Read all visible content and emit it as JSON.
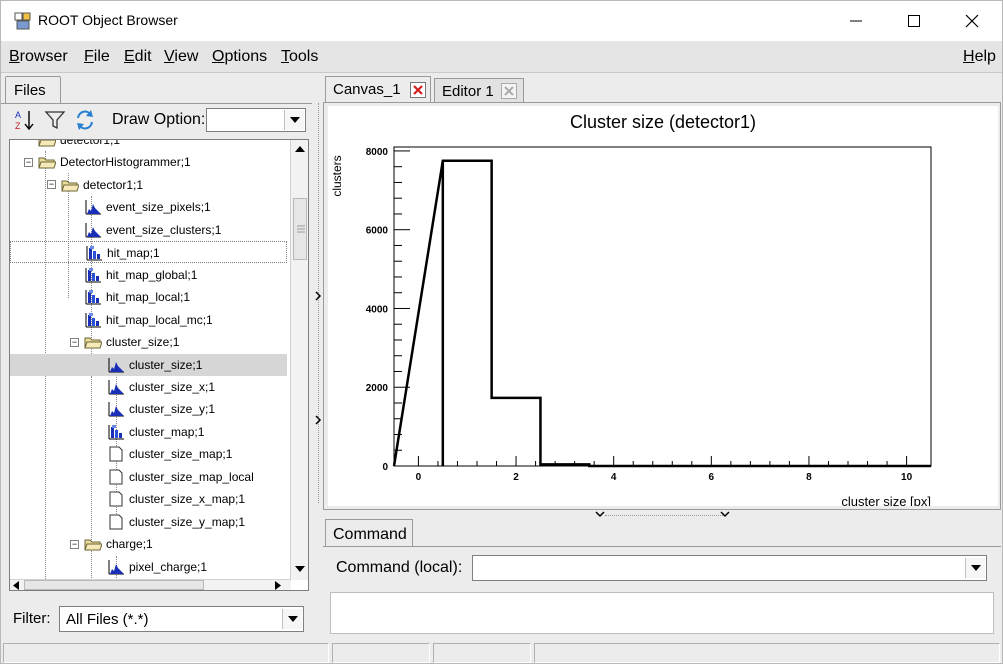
{
  "window": {
    "title": "ROOT Object Browser"
  },
  "menubar": {
    "items": [
      {
        "label": "Browser",
        "u": "B",
        "rest": "rowser"
      },
      {
        "label": "File",
        "u": "F",
        "rest": "ile"
      },
      {
        "label": "Edit",
        "u": "E",
        "rest": "dit"
      },
      {
        "label": "View",
        "u": "V",
        "rest": "iew"
      },
      {
        "label": "Options",
        "u": "O",
        "rest": "ptions"
      },
      {
        "label": "Tools",
        "u": "T",
        "rest": "ools"
      }
    ],
    "help": {
      "label": "Help",
      "u": "H",
      "rest": "elp"
    }
  },
  "left_panel": {
    "tab_label": "Files",
    "draw_option_label": "Draw Option:",
    "draw_option_value": "",
    "filter_label": "Filter:",
    "filter_value": "All Files (*.*)"
  },
  "tree": {
    "items": [
      {
        "label": "detector1;1",
        "icon": "folder",
        "toggle": "",
        "partial": true
      },
      {
        "label": "DetectorHistogrammer;1",
        "icon": "folder-open",
        "toggle": "−"
      },
      {
        "label": "detector1;1",
        "icon": "folder-open",
        "toggle": "−"
      },
      {
        "label": "event_size_pixels;1",
        "icon": "histogram-1d",
        "toggle": ""
      },
      {
        "label": "event_size_clusters;1",
        "icon": "histogram-1d",
        "toggle": ""
      },
      {
        "label": "hit_map;1",
        "icon": "histogram-2d",
        "toggle": ""
      },
      {
        "label": "hit_map_global;1",
        "icon": "histogram-2d",
        "toggle": ""
      },
      {
        "label": "hit_map_local;1",
        "icon": "histogram-2d",
        "toggle": ""
      },
      {
        "label": "hit_map_local_mc;1",
        "icon": "histogram-2d",
        "toggle": ""
      },
      {
        "label": "cluster_size;1",
        "icon": "folder-open",
        "toggle": "−"
      },
      {
        "label": "cluster_size;1",
        "icon": "histogram-1d",
        "toggle": ""
      },
      {
        "label": "cluster_size_x;1",
        "icon": "histogram-1d",
        "toggle": ""
      },
      {
        "label": "cluster_size_y;1",
        "icon": "histogram-1d",
        "toggle": ""
      },
      {
        "label": "cluster_map;1",
        "icon": "histogram-2d",
        "toggle": ""
      },
      {
        "label": "cluster_size_map;1",
        "icon": "document",
        "toggle": ""
      },
      {
        "label": "cluster_size_map_local",
        "icon": "document",
        "toggle": ""
      },
      {
        "label": "cluster_size_x_map;1",
        "icon": "document",
        "toggle": ""
      },
      {
        "label": "cluster_size_y_map;1",
        "icon": "document",
        "toggle": ""
      },
      {
        "label": "charge;1",
        "icon": "folder-open",
        "toggle": "−"
      },
      {
        "label": "pixel_charge;1",
        "icon": "histogram-1d",
        "toggle": ""
      }
    ]
  },
  "canvas_tabs": [
    {
      "label": "Canvas_1",
      "close_style": "active"
    },
    {
      "label": "Editor 1",
      "close_style": "inactive"
    }
  ],
  "command": {
    "tab_label": "Command",
    "label": "Command (local):",
    "value": ""
  },
  "colors": {
    "hist_icon_blue": "#1a2fb8",
    "close_red": "#d42020",
    "selected_row": "#d6d6d6"
  },
  "chart_data": {
    "type": "bar",
    "title": "Cluster size (detector1)",
    "xlabel": "cluster size [px]",
    "ylabel": "clusters",
    "xlim": [
      -0.5,
      10.5
    ],
    "ylim": [
      0,
      8100
    ],
    "x_ticks": [
      "0",
      "2",
      "4",
      "6",
      "8",
      "10"
    ],
    "y_ticks": [
      "0",
      "2000",
      "4000",
      "6000",
      "8000"
    ],
    "bins": [
      {
        "lo": 0.5,
        "hi": 1.5,
        "value": 7750
      },
      {
        "lo": 1.5,
        "hi": 2.5,
        "value": 1730
      },
      {
        "lo": 2.5,
        "hi": 3.5,
        "value": 40
      },
      {
        "lo": 3.5,
        "hi": 4.5,
        "value": 0
      },
      {
        "lo": 4.5,
        "hi": 5.5,
        "value": 0
      },
      {
        "lo": 5.5,
        "hi": 6.5,
        "value": 0
      },
      {
        "lo": 6.5,
        "hi": 7.5,
        "value": 0
      },
      {
        "lo": 7.5,
        "hi": 8.5,
        "value": 0
      },
      {
        "lo": 8.5,
        "hi": 9.5,
        "value": 0
      },
      {
        "lo": 9.5,
        "hi": 10.5,
        "value": 0
      }
    ]
  }
}
